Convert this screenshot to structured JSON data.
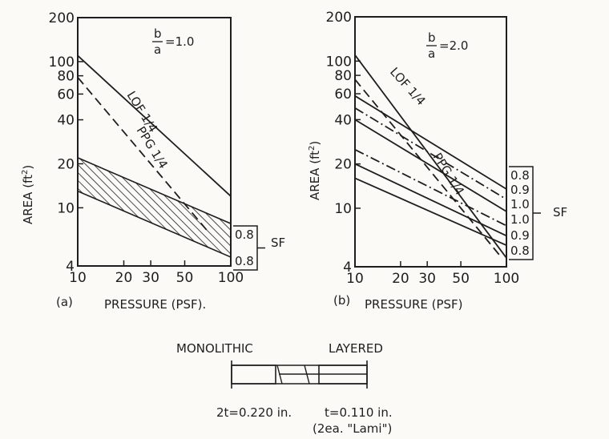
{
  "chart_data": [
    {
      "type": "line",
      "panel": "(a)",
      "ratio_label": "b/a = 1.0",
      "ratio_num": "b",
      "ratio_den": "a",
      "ratio_value": "=1.0",
      "xlabel": "PRESSURE (PSF)",
      "ylabel": "AREA (ft²)",
      "x_scale": "log",
      "y_scale": "log",
      "xlim": [
        10,
        100
      ],
      "ylim": [
        4,
        200
      ],
      "x_ticks": [
        10,
        20,
        30,
        50,
        100
      ],
      "y_ticks": [
        4,
        10,
        20,
        40,
        60,
        80,
        100,
        200
      ],
      "series": [
        {
          "name": "LOF 1/4",
          "style": "solid",
          "x": [
            10,
            100
          ],
          "y": [
            110,
            12
          ]
        },
        {
          "name": "PPG 1/4",
          "style": "dashed",
          "x": [
            10,
            70
          ],
          "y": [
            78,
            7
          ]
        }
      ],
      "band": {
        "style": "hatched",
        "upper": {
          "x": [
            10,
            100
          ],
          "y": [
            22,
            7.8
          ]
        },
        "lower": {
          "x": [
            10,
            100
          ],
          "y": [
            13,
            4.6
          ]
        }
      },
      "sf_bracket": {
        "label": "SF",
        "values": [
          "0.8",
          "0.8"
        ]
      }
    },
    {
      "type": "line",
      "panel": "(b)",
      "ratio_label": "b/a = 2.0",
      "ratio_num": "b",
      "ratio_den": "a",
      "ratio_value": "=2.0",
      "xlabel": "PRESSURE (PSF)",
      "ylabel": "AREA (ft²)",
      "x_scale": "log",
      "y_scale": "log",
      "xlim": [
        10,
        100
      ],
      "ylim": [
        4,
        200
      ],
      "x_ticks": [
        10,
        20,
        30,
        50,
        100
      ],
      "y_ticks": [
        4,
        10,
        20,
        40,
        60,
        80,
        100,
        200
      ],
      "series": [
        {
          "name": "LOF 1/4",
          "style": "solid",
          "x": [
            10,
            100
          ],
          "y": [
            110,
            4.6
          ]
        },
        {
          "name": "PPG 1/4",
          "style": "dashed",
          "x": [
            10,
            90
          ],
          "y": [
            75,
            4.8
          ]
        },
        {
          "style": "solid",
          "x": [
            10,
            100
          ],
          "y": [
            58,
            13.5
          ]
        },
        {
          "style": "dash-dot",
          "x": [
            10,
            100
          ],
          "y": [
            48,
            11.5
          ]
        },
        {
          "style": "solid",
          "x": [
            10,
            100
          ],
          "y": [
            40,
            9.5
          ]
        },
        {
          "style": "dash-dot",
          "x": [
            10,
            100
          ],
          "y": [
            25,
            7.6
          ]
        },
        {
          "style": "solid",
          "x": [
            10,
            100
          ],
          "y": [
            20,
            6.5
          ]
        },
        {
          "style": "solid",
          "x": [
            10,
            100
          ],
          "y": [
            16,
            5.6
          ]
        }
      ],
      "sf_bracket": {
        "label": "SF",
        "values": [
          "0.8",
          "0.9",
          "1.0",
          "1.0",
          "0.9",
          "0.8"
        ]
      }
    }
  ],
  "axis_titles": {
    "y": "AREA",
    "y_unit": "ft",
    "y_unit_exp": "2",
    "x": "PRESSURE (PSF)",
    "x_a": "PRESSURE (PSF)."
  },
  "legend": {
    "monolithic": "MONOLITHIC",
    "layered": "LAYERED",
    "mono_thickness": "2t=0.220 in.",
    "layer_thickness": "t=0.110 in.",
    "layer_note": "(2ea. \"Lami\")"
  }
}
